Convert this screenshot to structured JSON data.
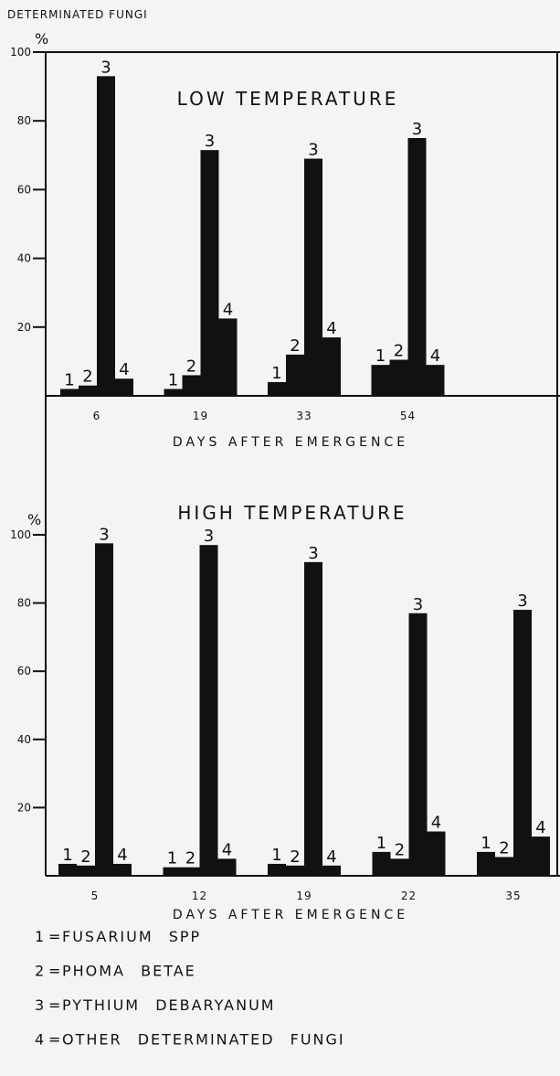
{
  "header": "DETERMINATED FUNGI",
  "legend": [
    {
      "label": "1",
      "name": "FUSARIUM SPP"
    },
    {
      "label": "2",
      "name": "PHOMA BETAE"
    },
    {
      "label": "3",
      "name": "PYTHIUM DEBARYANUM"
    },
    {
      "label": "4",
      "name": "OTHER DETERMINATED FUNGI"
    }
  ],
  "chart_data": [
    {
      "type": "bar",
      "title": "LOW TEMPERATURE",
      "y_label": "%",
      "x_label": "DAYS AFTER EMERGENCE",
      "categories": [
        "6",
        "19",
        "33",
        "54"
      ],
      "ylim": [
        0,
        100
      ],
      "yticks": [
        20,
        40,
        60,
        80,
        100
      ],
      "series": [
        {
          "label": "1",
          "color": "#111111",
          "values": [
            2,
            2,
            4,
            9
          ]
        },
        {
          "label": "2",
          "color": "#111111",
          "values": [
            3,
            6,
            12,
            10.5
          ]
        },
        {
          "label": "3",
          "color": "#111111",
          "values": [
            93,
            71.5,
            69,
            75
          ]
        },
        {
          "label": "4",
          "color": "#111111",
          "values": [
            5,
            22.5,
            17,
            9
          ]
        }
      ]
    },
    {
      "type": "bar",
      "title": "HIGH TEMPERATURE",
      "y_label": "%",
      "x_label": "DAYS AFTER EMERGENCE",
      "categories": [
        "5",
        "12",
        "19",
        "22",
        "35"
      ],
      "ylim": [
        0,
        100
      ],
      "yticks": [
        20,
        40,
        60,
        80,
        100
      ],
      "series": [
        {
          "label": "1",
          "color": "#111111",
          "values": [
            3.5,
            2.5,
            3.5,
            7,
            7
          ]
        },
        {
          "label": "2",
          "color": "#111111",
          "values": [
            3,
            2.5,
            3,
            5,
            5.5
          ]
        },
        {
          "label": "3",
          "color": "#111111",
          "values": [
            97.5,
            97,
            92,
            77,
            78
          ]
        },
        {
          "label": "4",
          "color": "#111111",
          "values": [
            3.5,
            5,
            3,
            13,
            11.5
          ]
        }
      ]
    }
  ]
}
